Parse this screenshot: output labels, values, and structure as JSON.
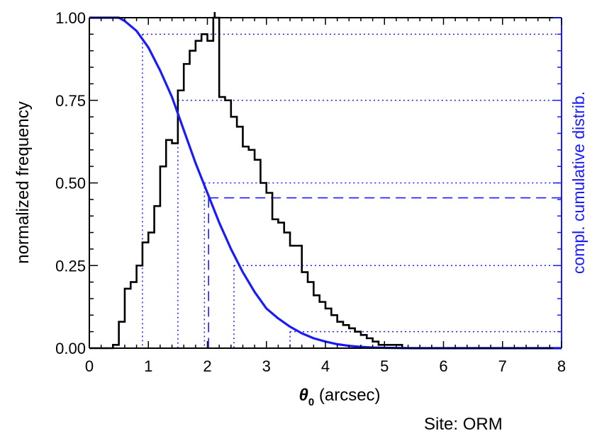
{
  "chart_data": {
    "type": "histogram",
    "xlabel_symbol": "θ",
    "xlabel_sub": "0",
    "xlabel_unit": " (arcsec)",
    "ylabel_left": "normalized frequency",
    "ylabel_right": "compl. cumulative distrib.",
    "annotation": "Site: ORM",
    "xlim": [
      0,
      8
    ],
    "ylim": [
      0,
      1
    ],
    "x_ticks": [
      0,
      1,
      2,
      3,
      4,
      5,
      6,
      7,
      8
    ],
    "x_tick_labels": [
      "0",
      "1",
      "2",
      "3",
      "4",
      "5",
      "6",
      "7",
      "8"
    ],
    "y_ticks": [
      0,
      0.25,
      0.5,
      0.75,
      1.0
    ],
    "y_tick_labels": [
      "0.00",
      "0.25",
      "0.50",
      "0.75",
      "1.00"
    ],
    "histogram": {
      "bin_width": 0.1,
      "bin_start": 0.0,
      "values": [
        0.0,
        0.0,
        0.0,
        0.0,
        0.01,
        0.08,
        0.18,
        0.2,
        0.25,
        0.32,
        0.35,
        0.43,
        0.55,
        0.63,
        0.62,
        0.78,
        0.86,
        0.9,
        0.93,
        0.95,
        0.93,
        1.0,
        0.76,
        0.75,
        0.7,
        0.67,
        0.61,
        0.6,
        0.57,
        0.5,
        0.47,
        0.39,
        0.38,
        0.35,
        0.31,
        0.31,
        0.23,
        0.2,
        0.16,
        0.14,
        0.12,
        0.1,
        0.08,
        0.07,
        0.06,
        0.05,
        0.04,
        0.03,
        0.02,
        0.01,
        0.01,
        0.01,
        0.01,
        0.0,
        0.0,
        0.0,
        0.0,
        0.0,
        0.0,
        0.0
      ],
      "color": "#000000"
    },
    "cumulative_curve": {
      "x": [
        0.0,
        0.5,
        0.6,
        0.8,
        1.0,
        1.2,
        1.4,
        1.6,
        1.8,
        2.0,
        2.2,
        2.4,
        2.6,
        2.8,
        3.0,
        3.2,
        3.4,
        3.6,
        3.8,
        4.0,
        4.2,
        4.4,
        4.6,
        4.8,
        5.0,
        5.5,
        6.0,
        7.0,
        8.0
      ],
      "y": [
        1.0,
        1.0,
        0.99,
        0.96,
        0.91,
        0.84,
        0.76,
        0.66,
        0.56,
        0.47,
        0.38,
        0.3,
        0.23,
        0.17,
        0.12,
        0.09,
        0.065,
        0.045,
        0.03,
        0.02,
        0.012,
        0.007,
        0.004,
        0.002,
        0.001,
        0.0,
        0.0,
        0.0,
        0.0
      ],
      "color": "#1a1aff"
    },
    "dotted_guides": [
      {
        "x": 0.9,
        "y": 0.95
      },
      {
        "x": 1.5,
        "y": 0.75
      },
      {
        "x": 1.95,
        "y": 0.5
      },
      {
        "x": 2.45,
        "y": 0.25
      },
      {
        "x": 3.4,
        "y": 0.05
      }
    ],
    "dashed_guide": {
      "x": 2.02,
      "y": 0.455
    },
    "guide_color": "#1a1aff"
  }
}
